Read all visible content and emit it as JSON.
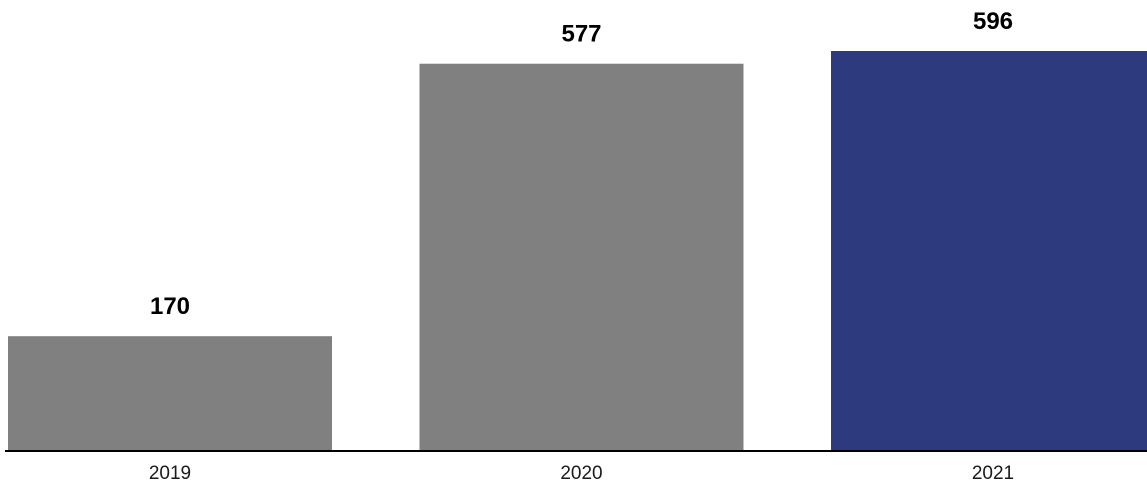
{
  "chart_data": {
    "type": "bar",
    "categories": [
      "2019",
      "2020",
      "2021"
    ],
    "values": [
      170,
      577,
      596
    ],
    "data_labels": [
      "170",
      "577",
      "596"
    ],
    "colors": [
      "#808080",
      "#808080",
      "#2e3a7e"
    ],
    "title": "",
    "xlabel": "",
    "ylabel": "",
    "ylim": [
      0,
      596
    ],
    "grid": false,
    "legend": "none",
    "axis_color": "#000000"
  }
}
